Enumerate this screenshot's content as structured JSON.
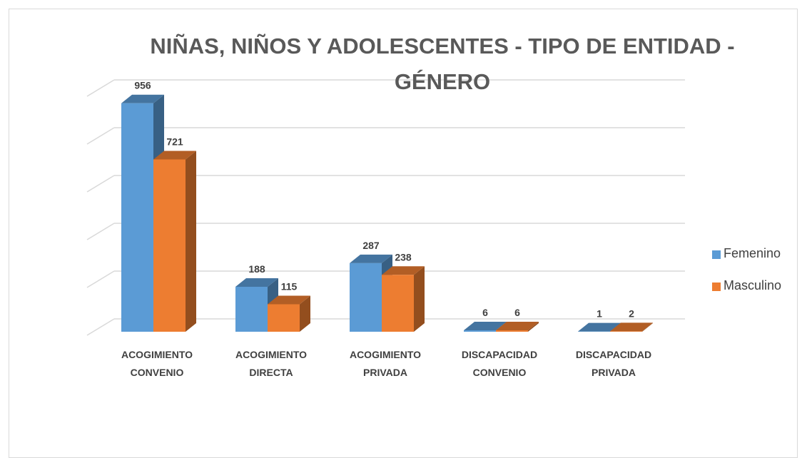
{
  "chart_data": {
    "type": "bar3d",
    "title": "NIÑAS, NIÑOS Y ADOLESCENTES - TIPO DE ENTIDAD - GÉNERO",
    "categories": [
      "ACOGIMIENTO CONVENIO",
      "ACOGIMIENTO DIRECTA",
      "ACOGIMIENTO PRIVADA",
      "DISCAPACIDAD CONVENIO",
      "DISCAPACIDAD PRIVADA"
    ],
    "series": [
      {
        "name": "Femenino",
        "color": "#5b9bd5",
        "values": [
          956,
          188,
          287,
          6,
          1
        ]
      },
      {
        "name": "Masculino",
        "color": "#ed7d31",
        "values": [
          721,
          115,
          238,
          6,
          2
        ]
      }
    ],
    "ylim": [
      0,
      1000
    ],
    "yticks": [
      0,
      200,
      400,
      600,
      800,
      1000
    ],
    "grid": true,
    "legend": "right"
  }
}
